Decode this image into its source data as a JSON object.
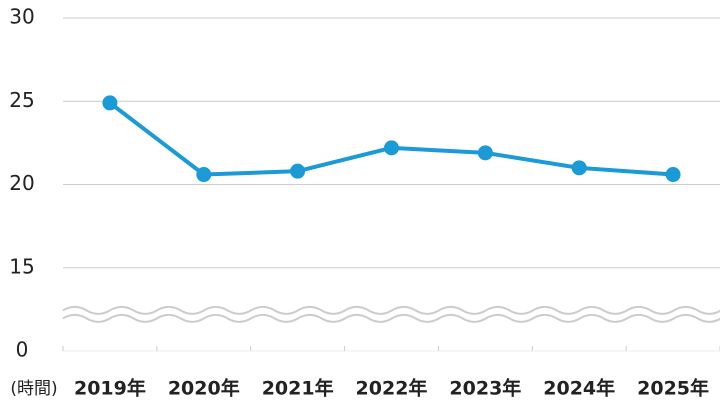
{
  "chart_data": {
    "type": "line",
    "x_label": "(時間)",
    "categories": [
      "2019年",
      "2020年",
      "2021年",
      "2022年",
      "2023年",
      "2024年",
      "2025年"
    ],
    "series": [
      {
        "color": "#1a9ad6",
        "values": [
          24.9,
          20.6,
          20.8,
          22.2,
          21.9,
          21.0,
          20.6
        ]
      }
    ],
    "ylim": [
      0,
      30
    ],
    "yticks": [
      0,
      15,
      20,
      25,
      30
    ],
    "axis_break": [
      0,
      10
    ],
    "grid": true
  }
}
